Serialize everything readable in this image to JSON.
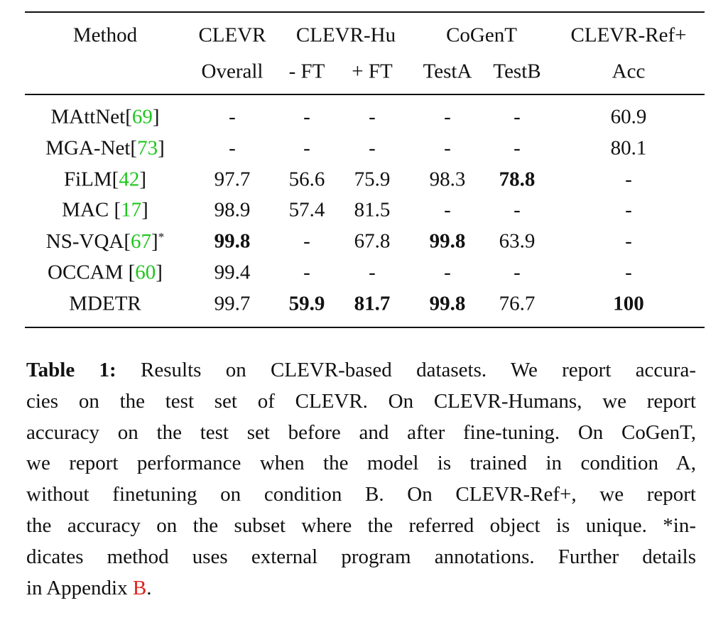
{
  "table": {
    "header_top": [
      "Method",
      "CLEVR",
      "CLEVR-Hu",
      "CoGenT",
      "CLEVR-Ref+"
    ],
    "header_sub": [
      "Overall",
      "- FT",
      "+ FT",
      "TestA",
      "TestB",
      "Acc"
    ],
    "rows": [
      {
        "method": {
          "name": "MAttNet[",
          "ref": "69",
          "after": "]"
        },
        "cells": [
          "-",
          "-",
          "-",
          "-",
          "-",
          60.9
        ],
        "bold": []
      },
      {
        "method": {
          "name": "MGA-Net[",
          "ref": "73",
          "after": "]"
        },
        "cells": [
          "-",
          "-",
          "-",
          "-",
          "-",
          80.1
        ],
        "bold": []
      },
      {
        "method": {
          "name": "FiLM[",
          "ref": "42",
          "after": "]"
        },
        "cells": [
          97.7,
          56.6,
          75.9,
          98.3,
          78.8,
          "-"
        ],
        "bold": [
          4
        ]
      },
      {
        "method": {
          "name": "MAC [",
          "ref": "17",
          "after": "]"
        },
        "cells": [
          98.9,
          57.4,
          81.5,
          "-",
          "-",
          "-"
        ],
        "bold": []
      },
      {
        "method": {
          "name": "NS-VQA[",
          "ref": "67",
          "after": "]",
          "mark": "*"
        },
        "cells": [
          99.8,
          "-",
          67.8,
          99.8,
          63.9,
          "-"
        ],
        "bold": [
          0,
          3
        ]
      },
      {
        "method": {
          "name": "OCCAM [",
          "ref": "60",
          "after": "]"
        },
        "cells": [
          99.4,
          "-",
          "-",
          "-",
          "-",
          "-"
        ],
        "bold": []
      },
      {
        "method": {
          "name": "MDETR"
        },
        "cells": [
          99.7,
          59.9,
          81.7,
          99.8,
          76.7,
          100
        ],
        "bold": [
          1,
          2,
          3,
          5
        ]
      }
    ]
  },
  "caption": {
    "label": "Table 1:",
    "lines": [
      "Results on CLEVR-based datasets.  We report accura-",
      "cies on the test set of CLEVR. On CLEVR-Humans, we report",
      "accuracy on the test set before and after fine-tuning. On CoGenT,",
      "we report performance when the model is trained in condition A,",
      "without finetuning on condition B. On CLEVR-Ref+, we report",
      "the accuracy on the subset where the referred object is unique. *in-",
      "dicates method uses external program annotations. Further details",
      "in Appendix "
    ],
    "ref": "B",
    "end": "."
  }
}
